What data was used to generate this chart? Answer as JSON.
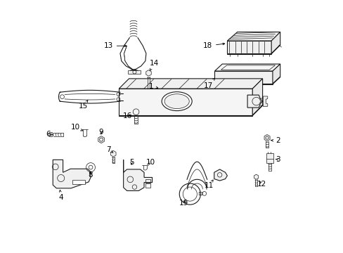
{
  "background_color": "#ffffff",
  "line_color": "#1a1a1a",
  "fig_width": 4.89,
  "fig_height": 3.6,
  "dpi": 100,
  "label_positions": {
    "1": [
      0.495,
      0.618,
      0.46,
      0.65
    ],
    "2": [
      0.895,
      0.44,
      0.92,
      0.44
    ],
    "3": [
      0.895,
      0.37,
      0.92,
      0.37
    ],
    "4": [
      0.068,
      0.238,
      0.068,
      0.21
    ],
    "5": [
      0.355,
      0.33,
      0.355,
      0.355
    ],
    "6": [
      0.022,
      0.468,
      0.005,
      0.468
    ],
    "7": [
      0.27,
      0.385,
      0.255,
      0.408
    ],
    "8": [
      0.175,
      0.328,
      0.175,
      0.308
    ],
    "9": [
      0.218,
      0.458,
      0.218,
      0.48
    ],
    "10a": [
      0.138,
      0.478,
      0.118,
      0.498
    ],
    "10b": [
      0.38,
      0.332,
      0.38,
      0.358
    ],
    "11": [
      0.64,
      0.295,
      0.62,
      0.275
    ],
    "12": [
      0.832,
      0.278,
      0.858,
      0.278
    ],
    "13": [
      0.282,
      0.818,
      0.258,
      0.818
    ],
    "14": [
      0.398,
      0.728,
      0.418,
      0.748
    ],
    "15": [
      0.17,
      0.598,
      0.148,
      0.58
    ],
    "16": [
      0.352,
      0.542,
      0.328,
      0.542
    ],
    "17": [
      0.668,
      0.658,
      0.648,
      0.658
    ],
    "18": [
      0.668,
      0.818,
      0.645,
      0.818
    ],
    "19": [
      0.575,
      0.215,
      0.548,
      0.198
    ]
  }
}
